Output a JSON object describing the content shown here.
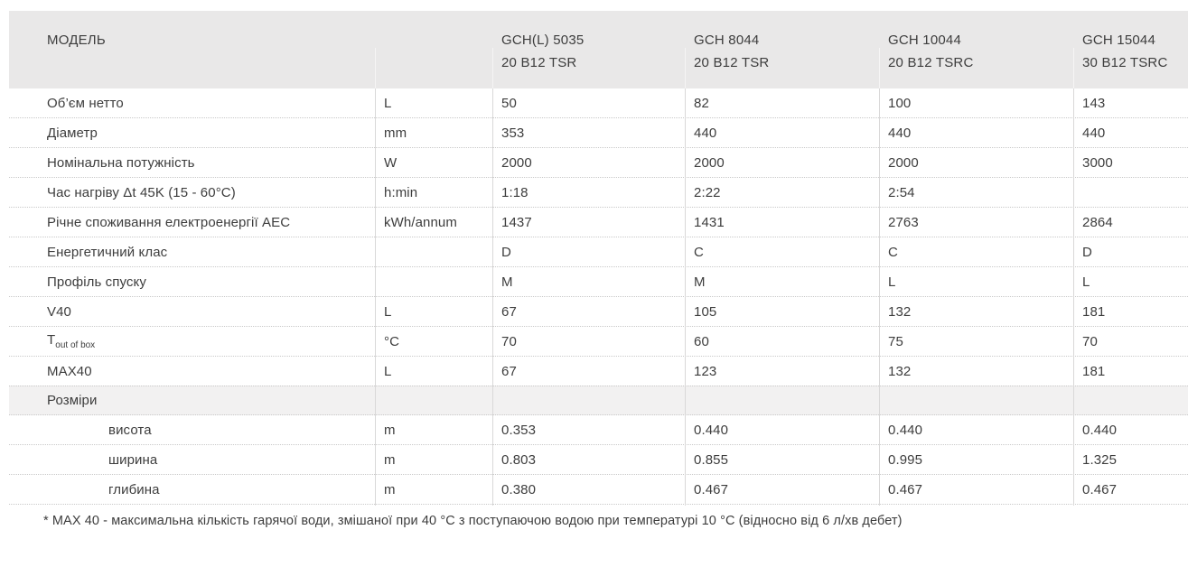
{
  "table": {
    "header": {
      "model_label": "МОДЕЛЬ",
      "models": [
        {
          "line1": "GCH(L) 5035",
          "line2": "20 B12 TSR"
        },
        {
          "line1": "GCH 8044",
          "line2": "20 B12 TSR"
        },
        {
          "line1": "GCH 10044",
          "line2": "20 B12 TSRC"
        },
        {
          "line1": "GCH 15044",
          "line2": "30 B12 TSRC"
        }
      ]
    },
    "rows": [
      {
        "label": "Об’єм нетто",
        "unit": "L",
        "values": [
          "50",
          "82",
          "100",
          "143"
        ]
      },
      {
        "label": "Діаметр",
        "unit": "mm",
        "values": [
          "353",
          "440",
          "440",
          "440"
        ]
      },
      {
        "label": "Номінальна потужність",
        "unit": "W",
        "values": [
          "2000",
          "2000",
          "2000",
          "3000"
        ]
      },
      {
        "label": "Час нагріву Δt 45K (15 - 60°C)",
        "unit": "h:min",
        "values": [
          "1:18",
          "2:22",
          "2:54",
          ""
        ]
      },
      {
        "label": "Річне споживання електроенергії AEC",
        "unit": "kWh/annum",
        "values": [
          "1437",
          "1431",
          "2763",
          "2864"
        ]
      },
      {
        "label": "Енергетичний клас",
        "unit": "",
        "values": [
          "D",
          "C",
          "C",
          "D"
        ]
      },
      {
        "label": "Профіль спуску",
        "unit": "",
        "values": [
          "M",
          "M",
          "L",
          "L"
        ]
      },
      {
        "label": "V40",
        "unit": "L",
        "values": [
          "67",
          "105",
          "132",
          "181"
        ]
      },
      {
        "label": "T",
        "label_sub": "out of box",
        "unit": "°C",
        "values": [
          "70",
          "60",
          "75",
          "70"
        ]
      },
      {
        "label": "MAX40",
        "unit": "L",
        "values": [
          "67",
          "123",
          "132",
          "181"
        ]
      }
    ],
    "section": {
      "label": "Розміри"
    },
    "dimension_rows": [
      {
        "label": "висота",
        "unit": "m",
        "values": [
          "0.353",
          "0.440",
          "0.440",
          "0.440"
        ]
      },
      {
        "label": "ширина",
        "unit": "m",
        "values": [
          "0.803",
          "0.855",
          "0.995",
          "1.325"
        ]
      },
      {
        "label": "глибина",
        "unit": "m",
        "values": [
          "0.380",
          "0.467",
          "0.467",
          "0.467"
        ]
      }
    ],
    "footnote": "* MAX 40 - максимальна кількість гарячої води, змішаної при 40 °C з поступаючою водою при температурі 10 °C (відносно від 6 л/хв дебет)",
    "colors": {
      "header_bg": "#e9e8e8",
      "section_bg": "#f2f1f1",
      "text": "#3d3d3d",
      "divider_body": "#d9d8d8",
      "divider_header": "#f6f5f5",
      "dotted_separator": "#c9c9c9"
    }
  }
}
